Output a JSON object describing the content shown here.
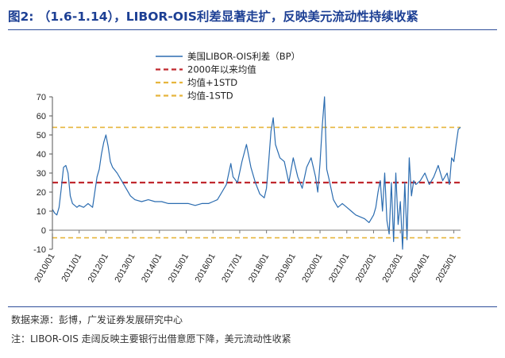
{
  "header": {
    "title": "图2: （1.6-1.14），LIBOR-OIS利差显著走扩，反映美元流动性持续收紧"
  },
  "footer": {
    "source": "数据来源：彭博，广发证券发展研究中心",
    "note": "注：LIBOR-OIS 走阔反映主要银行出借意愿下降，美元流动性收紧"
  },
  "colors": {
    "series": "#2b6cb0",
    "mean": "#c0282e",
    "band": "#e6b53c",
    "header": "#1c3f94"
  },
  "chart_data": {
    "type": "line",
    "title": "",
    "xlabel": "",
    "ylabel": "",
    "ylim": [
      -10,
      70
    ],
    "yticks": [
      "-10",
      "0",
      "10",
      "20",
      "30",
      "40",
      "50",
      "60",
      "70"
    ],
    "xticks": [
      "2010/01",
      "2011/01",
      "2012/01",
      "2013/01",
      "2014/01",
      "2015/01",
      "2016/01",
      "2017/01",
      "2018/01",
      "2019/01",
      "2020/01",
      "2021/01",
      "2022/01",
      "2023/01",
      "2024/01",
      "2025/01"
    ],
    "x_start": "2010/01",
    "x_end": "2025/04",
    "grid": false,
    "legend": "top-left",
    "legend_items": [
      {
        "label": "美国LIBOR-OIS利差（BP）",
        "style": "solid",
        "color": "#2b6cb0"
      },
      {
        "label": "2000年以来均值",
        "style": "dashed",
        "color": "#c0282e"
      },
      {
        "label": "均值+1STD",
        "style": "dashed",
        "color": "#e6b53c"
      },
      {
        "label": "均值-1STD",
        "style": "dashed",
        "color": "#e6b53c"
      }
    ],
    "reference_lines": [
      {
        "name": "2000年以来均值",
        "value": 25
      },
      {
        "name": "均值+1STD",
        "value": 54
      },
      {
        "name": "均值-1STD",
        "value": -4
      }
    ],
    "series": [
      {
        "name": "美国LIBOR-OIS利差（BP）",
        "x": [
          "2010/01",
          "2010/02",
          "2010/03",
          "2010/04",
          "2010/05",
          "2010/06",
          "2010/07",
          "2010/08",
          "2010/09",
          "2010/10",
          "2010/11",
          "2010/12",
          "2011/01",
          "2011/03",
          "2011/05",
          "2011/07",
          "2011/08",
          "2011/09",
          "2011/10",
          "2011/11",
          "2011/12",
          "2012/01",
          "2012/02",
          "2012/03",
          "2012/04",
          "2012/06",
          "2012/08",
          "2012/10",
          "2012/12",
          "2013/02",
          "2013/05",
          "2013/08",
          "2013/11",
          "2014/02",
          "2014/05",
          "2014/08",
          "2014/11",
          "2015/02",
          "2015/05",
          "2015/08",
          "2015/11",
          "2016/01",
          "2016/03",
          "2016/05",
          "2016/07",
          "2016/09",
          "2016/10",
          "2016/12",
          "2017/02",
          "2017/04",
          "2017/06",
          "2017/08",
          "2017/10",
          "2017/12",
          "2018/01",
          "2018/02",
          "2018/03",
          "2018/04",
          "2018/05",
          "2018/07",
          "2018/09",
          "2018/11",
          "2019/01",
          "2019/03",
          "2019/05",
          "2019/07",
          "2019/09",
          "2019/11",
          "2019/12",
          "2020/01",
          "2020/02",
          "2020/03",
          "2020/04",
          "2020/05",
          "2020/07",
          "2020/09",
          "2020/11",
          "2021/01",
          "2021/03",
          "2021/05",
          "2021/07",
          "2021/09",
          "2021/11",
          "2022/01",
          "2022/02",
          "2022/03",
          "2022/04",
          "2022/05",
          "2022/06",
          "2022/07",
          "2022/08",
          "2022/09",
          "2022/10",
          "2022/11",
          "2022/12",
          "2023/01",
          "2023/02",
          "2023/03",
          "2023/04",
          "2023/05",
          "2023/06",
          "2023/07",
          "2023/08",
          "2023/10",
          "2023/12",
          "2024/02",
          "2024/04",
          "2024/06",
          "2024/08",
          "2024/10",
          "2024/11",
          "2024/12",
          "2025/01",
          "2025/02",
          "2025/03",
          "2025/04"
        ],
        "values": [
          11,
          9,
          8,
          12,
          22,
          33,
          34,
          30,
          18,
          14,
          13,
          12,
          13,
          12,
          14,
          12,
          20,
          28,
          32,
          40,
          46,
          50,
          44,
          36,
          33,
          30,
          26,
          22,
          18,
          16,
          15,
          16,
          15,
          15,
          14,
          14,
          14,
          14,
          13,
          14,
          14,
          15,
          16,
          20,
          24,
          35,
          28,
          25,
          36,
          45,
          33,
          25,
          19,
          17,
          22,
          36,
          52,
          59,
          45,
          38,
          36,
          25,
          38,
          28,
          22,
          33,
          38,
          28,
          20,
          35,
          55,
          70,
          32,
          27,
          16,
          12,
          14,
          12,
          10,
          8,
          7,
          6,
          4,
          8,
          12,
          20,
          26,
          10,
          30,
          5,
          -2,
          25,
          -6,
          30,
          3,
          15,
          -10,
          25,
          -5,
          38,
          18,
          26,
          24,
          26,
          30,
          24,
          28,
          34,
          26,
          30,
          24,
          38,
          36,
          45,
          53,
          54
        ]
      }
    ]
  }
}
